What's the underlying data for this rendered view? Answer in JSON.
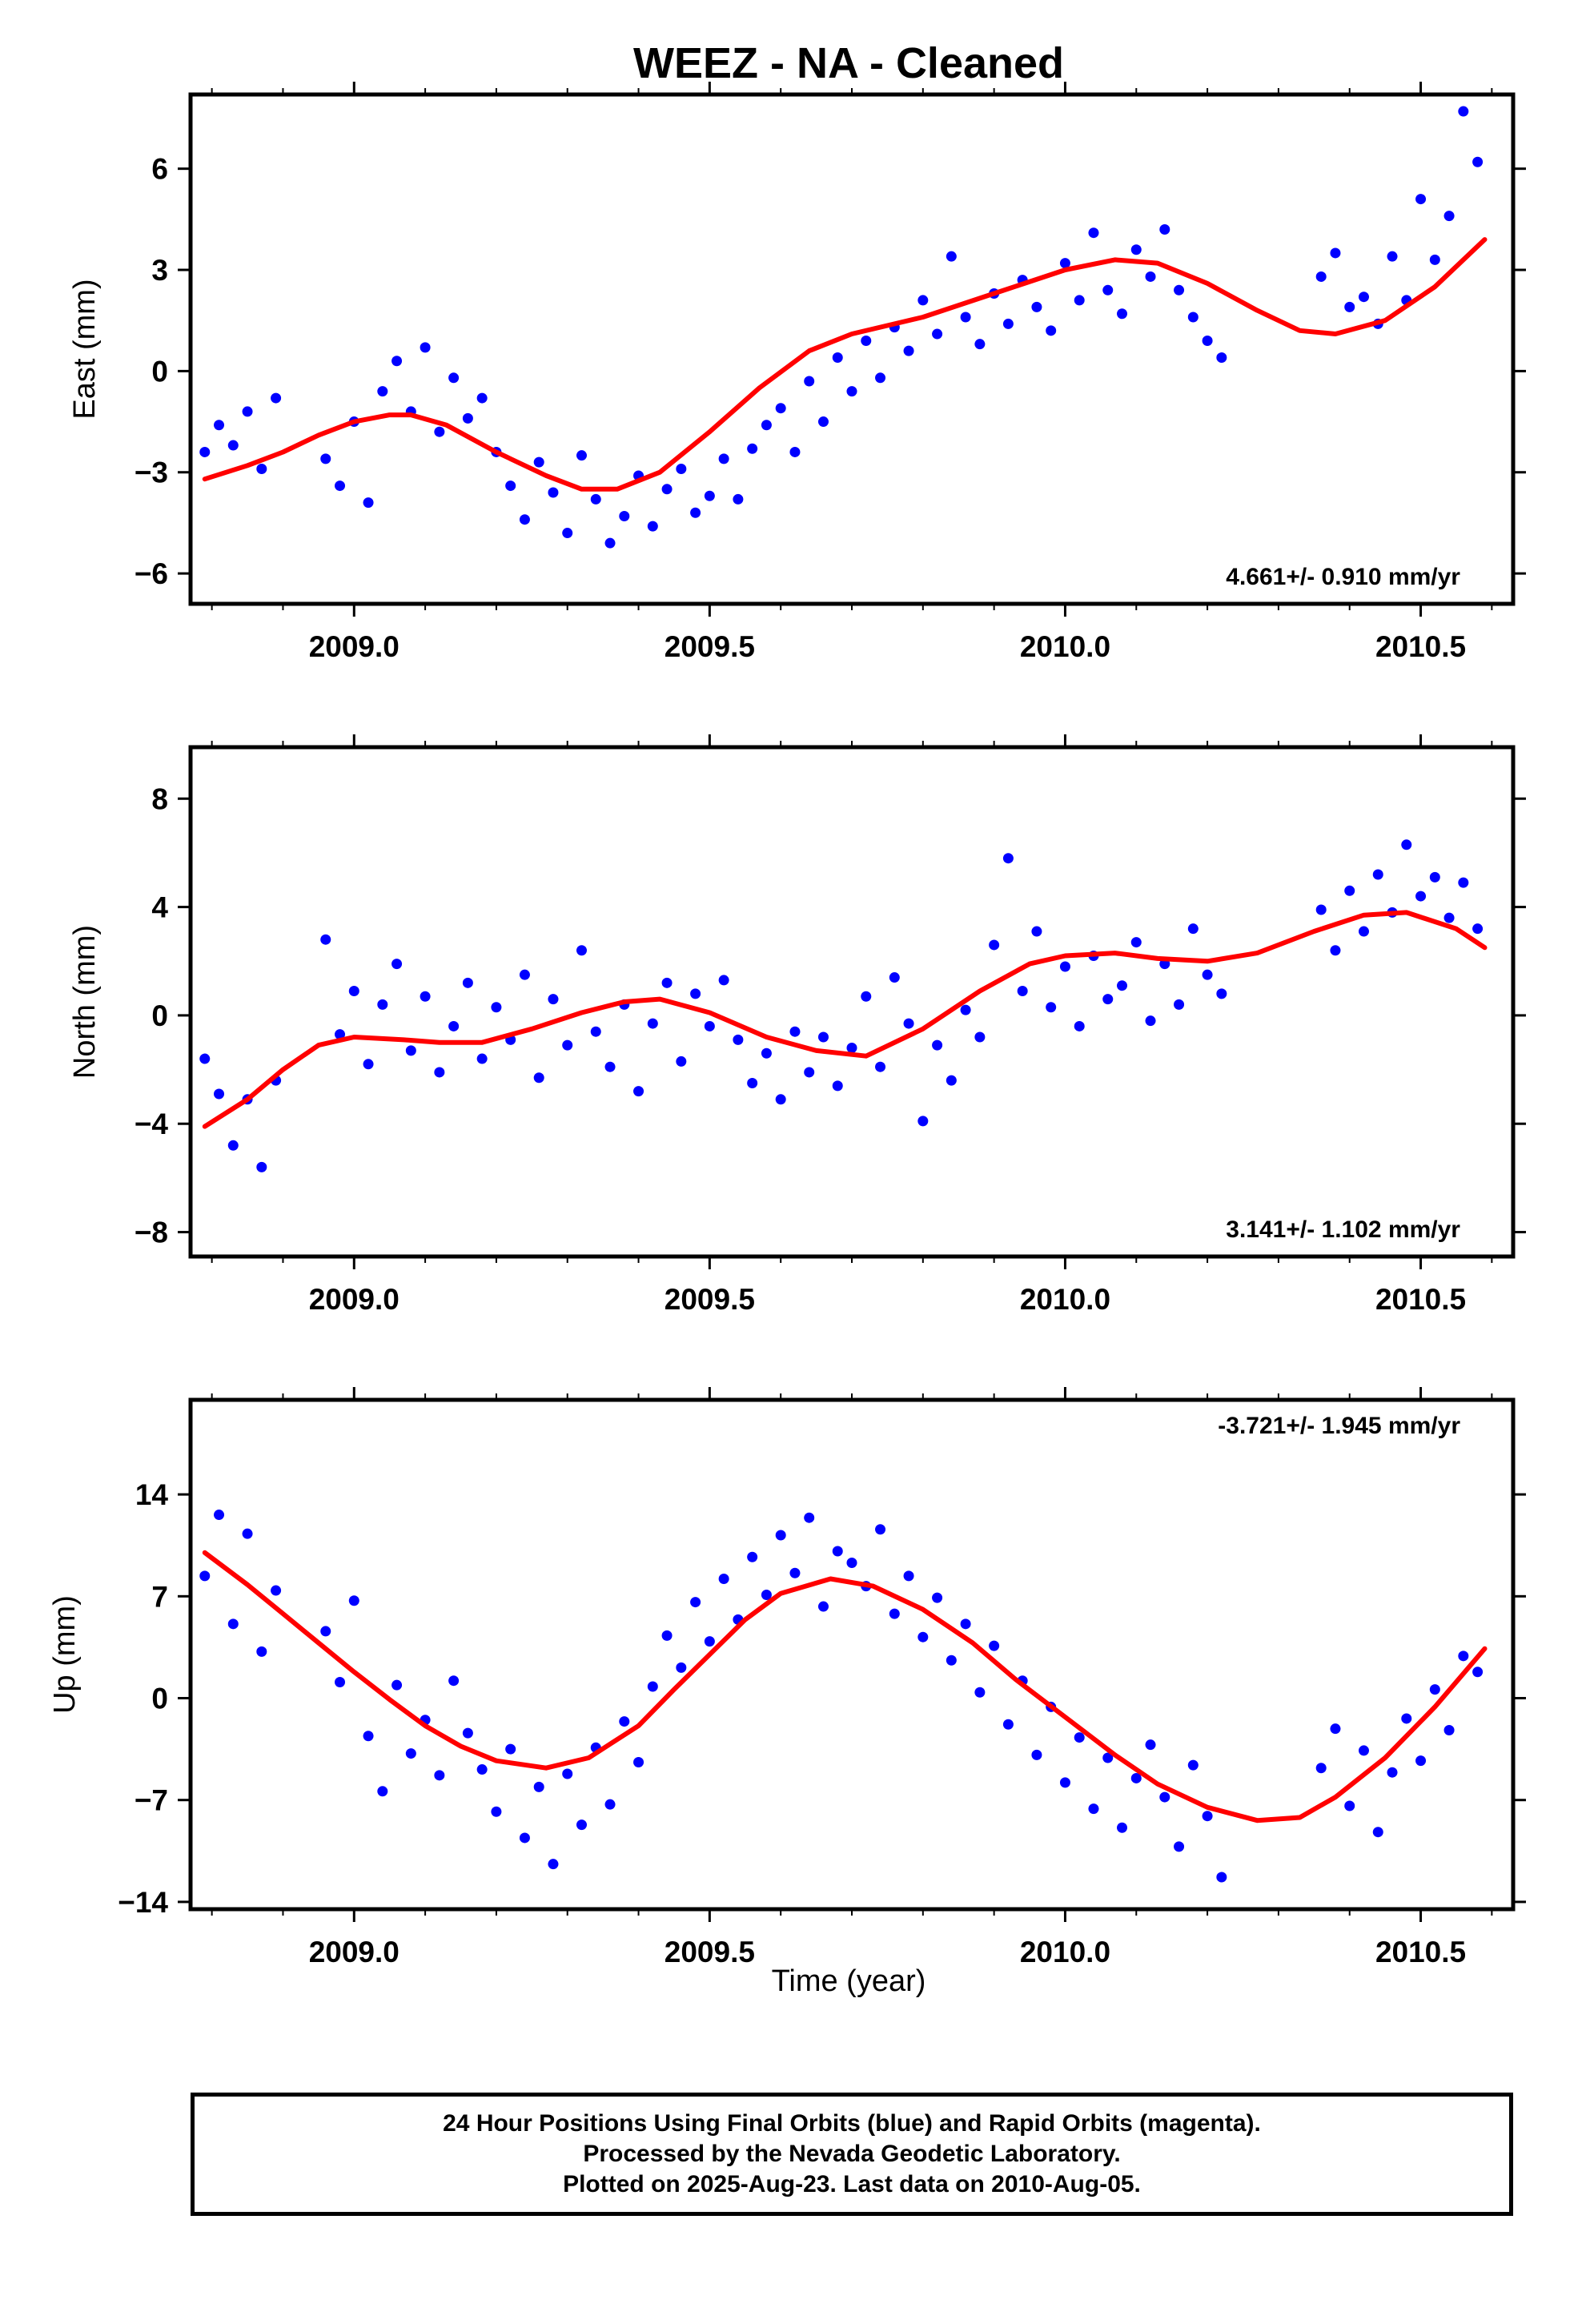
{
  "title": "WEEZ  - NA - Cleaned",
  "xlabel": "Time (year)",
  "footer": {
    "line1": "24 Hour Positions Using Final Orbits (blue) and Rapid Orbits (magenta).",
    "line2": "Processed by the Nevada Geodetic Laboratory.",
    "line3": "Plotted on 2025-Aug-23. Last data on 2010-Aug-05."
  },
  "colors": {
    "points": "#0000ff",
    "fit": "#ff0000",
    "frame": "#000000"
  },
  "chart_data": [
    {
      "type": "scatter",
      "ylabel": "East (mm)",
      "rate": "4.661+/- 0.910 mm/yr",
      "rate_position": "bottom-right",
      "xlim": [
        2008.77,
        2010.63
      ],
      "ylim": [
        -6.9,
        8.2
      ],
      "xticks": [
        2009.0,
        2009.5,
        2010.0,
        2010.5
      ],
      "xtick_labels": [
        "2009.0",
        "2009.5",
        "2010.0",
        "2010.5"
      ],
      "yticks": [
        -6,
        -3,
        0,
        3,
        6
      ],
      "ytick_labels": [
        "−6",
        "−3",
        "0",
        "3",
        "6"
      ],
      "grid": false,
      "series": [
        {
          "kind": "points",
          "x": [
            2008.79,
            2008.81,
            2008.83,
            2008.85,
            2008.87,
            2008.89,
            2008.96,
            2008.98,
            2009.0,
            2009.02,
            2009.04,
            2009.06,
            2009.08,
            2009.1,
            2009.12,
            2009.14,
            2009.16,
            2009.18,
            2009.2,
            2009.22,
            2009.24,
            2009.26,
            2009.28,
            2009.3,
            2009.32,
            2009.34,
            2009.36,
            2009.38,
            2009.4,
            2009.42,
            2009.44,
            2009.46,
            2009.48,
            2009.5,
            2009.52,
            2009.54,
            2009.56,
            2009.58,
            2009.6,
            2009.62,
            2009.64,
            2009.66,
            2009.68,
            2009.7,
            2009.72,
            2009.74,
            2009.76,
            2009.78,
            2009.8,
            2009.82,
            2009.84,
            2009.86,
            2009.88,
            2009.9,
            2009.92,
            2009.94,
            2009.96,
            2009.98,
            2010.0,
            2010.02,
            2010.04,
            2010.06,
            2010.08,
            2010.1,
            2010.12,
            2010.14,
            2010.16,
            2010.18,
            2010.2,
            2010.22,
            2010.36,
            2010.38,
            2010.4,
            2010.42,
            2010.44,
            2010.46,
            2010.48,
            2010.5,
            2010.52,
            2010.54,
            2010.56,
            2010.58
          ],
          "y": [
            -2.4,
            -1.6,
            -2.2,
            -1.2,
            -2.9,
            -0.8,
            -2.6,
            -3.4,
            -1.5,
            -3.9,
            -0.6,
            0.3,
            -1.2,
            0.7,
            -1.8,
            -0.2,
            -1.4,
            -0.8,
            -2.4,
            -3.4,
            -4.4,
            -2.7,
            -3.6,
            -4.8,
            -2.5,
            -3.8,
            -5.1,
            -4.3,
            -3.1,
            -4.6,
            -3.5,
            -2.9,
            -4.2,
            -3.7,
            -2.6,
            -3.8,
            -2.3,
            -1.6,
            -1.1,
            -2.4,
            -0.3,
            -1.5,
            0.4,
            -0.6,
            0.9,
            -0.2,
            1.3,
            0.6,
            2.1,
            1.1,
            3.4,
            1.6,
            0.8,
            2.3,
            1.4,
            2.7,
            1.9,
            1.2,
            3.2,
            2.1,
            4.1,
            2.4,
            1.7,
            3.6,
            2.8,
            4.2,
            2.4,
            1.6,
            0.9,
            0.4,
            2.8,
            3.5,
            1.9,
            2.2,
            1.4,
            3.4,
            2.1,
            5.1,
            3.3,
            4.6,
            7.7,
            6.2
          ]
        },
        {
          "kind": "fit",
          "x": [
            2008.79,
            2008.85,
            2008.9,
            2008.95,
            2009.0,
            2009.05,
            2009.08,
            2009.13,
            2009.2,
            2009.27,
            2009.32,
            2009.37,
            2009.43,
            2009.5,
            2009.57,
            2009.64,
            2009.7,
            2009.8,
            2009.9,
            2010.0,
            2010.07,
            2010.13,
            2010.2,
            2010.27,
            2010.33,
            2010.38,
            2010.45,
            2010.52,
            2010.59
          ],
          "y": [
            -3.2,
            -2.8,
            -2.4,
            -1.9,
            -1.5,
            -1.3,
            -1.3,
            -1.6,
            -2.4,
            -3.1,
            -3.5,
            -3.5,
            -3.0,
            -1.8,
            -0.5,
            0.6,
            1.1,
            1.6,
            2.3,
            3.0,
            3.3,
            3.2,
            2.6,
            1.8,
            1.2,
            1.1,
            1.5,
            2.5,
            3.9
          ]
        }
      ]
    },
    {
      "type": "scatter",
      "ylabel": "North (mm)",
      "rate": "3.141+/- 1.102 mm/yr",
      "rate_position": "bottom-right",
      "xlim": [
        2008.77,
        2010.63
      ],
      "ylim": [
        -8.9,
        9.9
      ],
      "xticks": [
        2009.0,
        2009.5,
        2010.0,
        2010.5
      ],
      "xtick_labels": [
        "2009.0",
        "2009.5",
        "2010.0",
        "2010.5"
      ],
      "yticks": [
        -8,
        -4,
        0,
        4,
        8
      ],
      "ytick_labels": [
        "−8",
        "−4",
        "0",
        "4",
        "8"
      ],
      "grid": false,
      "series": [
        {
          "kind": "points",
          "x": [
            2008.79,
            2008.81,
            2008.83,
            2008.85,
            2008.87,
            2008.89,
            2008.96,
            2008.98,
            2009.0,
            2009.02,
            2009.04,
            2009.06,
            2009.08,
            2009.1,
            2009.12,
            2009.14,
            2009.16,
            2009.18,
            2009.2,
            2009.22,
            2009.24,
            2009.26,
            2009.28,
            2009.3,
            2009.32,
            2009.34,
            2009.36,
            2009.38,
            2009.4,
            2009.42,
            2009.44,
            2009.46,
            2009.48,
            2009.5,
            2009.52,
            2009.54,
            2009.56,
            2009.58,
            2009.6,
            2009.62,
            2009.64,
            2009.66,
            2009.68,
            2009.7,
            2009.72,
            2009.74,
            2009.76,
            2009.78,
            2009.8,
            2009.82,
            2009.84,
            2009.86,
            2009.88,
            2009.9,
            2009.92,
            2009.94,
            2009.96,
            2009.98,
            2010.0,
            2010.02,
            2010.04,
            2010.06,
            2010.08,
            2010.1,
            2010.12,
            2010.14,
            2010.16,
            2010.18,
            2010.2,
            2010.22,
            2010.36,
            2010.38,
            2010.4,
            2010.42,
            2010.44,
            2010.46,
            2010.48,
            2010.5,
            2010.52,
            2010.54,
            2010.56,
            2010.58
          ],
          "y": [
            -1.6,
            -2.9,
            -4.8,
            -3.1,
            -5.6,
            -2.4,
            2.8,
            -0.7,
            0.9,
            -1.8,
            0.4,
            1.9,
            -1.3,
            0.7,
            -2.1,
            -0.4,
            1.2,
            -1.6,
            0.3,
            -0.9,
            1.5,
            -2.3,
            0.6,
            -1.1,
            2.4,
            -0.6,
            -1.9,
            0.4,
            -2.8,
            -0.3,
            1.2,
            -1.7,
            0.8,
            -0.4,
            1.3,
            -0.9,
            -2.5,
            -1.4,
            -3.1,
            -0.6,
            -2.1,
            -0.8,
            -2.6,
            -1.2,
            0.7,
            -1.9,
            1.4,
            -0.3,
            -3.9,
            -1.1,
            -2.4,
            0.2,
            -0.8,
            2.6,
            5.8,
            0.9,
            3.1,
            0.3,
            1.8,
            -0.4,
            2.2,
            0.6,
            1.1,
            2.7,
            -0.2,
            1.9,
            0.4,
            3.2,
            1.5,
            0.8,
            3.9,
            2.4,
            4.6,
            3.1,
            5.2,
            3.8,
            6.3,
            4.4,
            5.1,
            3.6,
            4.9,
            3.2
          ]
        },
        {
          "kind": "fit",
          "x": [
            2008.79,
            2008.85,
            2008.9,
            2008.95,
            2009.0,
            2009.07,
            2009.12,
            2009.18,
            2009.25,
            2009.32,
            2009.38,
            2009.43,
            2009.5,
            2009.58,
            2009.65,
            2009.72,
            2009.8,
            2009.88,
            2009.95,
            2010.0,
            2010.07,
            2010.13,
            2010.2,
            2010.27,
            2010.35,
            2010.42,
            2010.48,
            2010.55,
            2010.59
          ],
          "y": [
            -4.1,
            -3.1,
            -2.0,
            -1.1,
            -0.8,
            -0.9,
            -1.0,
            -1.0,
            -0.5,
            0.1,
            0.5,
            0.6,
            0.1,
            -0.8,
            -1.3,
            -1.5,
            -0.5,
            0.9,
            1.9,
            2.2,
            2.3,
            2.1,
            2.0,
            2.3,
            3.1,
            3.7,
            3.8,
            3.2,
            2.5
          ]
        }
      ]
    },
    {
      "type": "scatter",
      "ylabel": "Up (mm)",
      "rate": "-3.721+/- 1.945 mm/yr",
      "rate_position": "top-right",
      "xlim": [
        2008.77,
        2010.63
      ],
      "ylim": [
        -14.5,
        20.5
      ],
      "xticks": [
        2009.0,
        2009.5,
        2010.0,
        2010.5
      ],
      "xtick_labels": [
        "2009.0",
        "2009.5",
        "2010.0",
        "2010.5"
      ],
      "yticks": [
        -14,
        -7,
        0,
        7,
        14
      ],
      "ytick_labels": [
        "−14",
        "−7",
        "0",
        "7",
        "14"
      ],
      "grid": false,
      "series": [
        {
          "kind": "points",
          "x": [
            2008.79,
            2008.81,
            2008.83,
            2008.85,
            2008.87,
            2008.89,
            2008.96,
            2008.98,
            2009.0,
            2009.02,
            2009.04,
            2009.06,
            2009.08,
            2009.1,
            2009.12,
            2009.14,
            2009.16,
            2009.18,
            2009.2,
            2009.22,
            2009.24,
            2009.26,
            2009.28,
            2009.3,
            2009.32,
            2009.34,
            2009.36,
            2009.38,
            2009.4,
            2009.42,
            2009.44,
            2009.46,
            2009.48,
            2009.5,
            2009.52,
            2009.54,
            2009.56,
            2009.58,
            2009.6,
            2009.62,
            2009.64,
            2009.66,
            2009.68,
            2009.7,
            2009.72,
            2009.74,
            2009.76,
            2009.78,
            2009.8,
            2009.82,
            2009.84,
            2009.86,
            2009.88,
            2009.9,
            2009.92,
            2009.94,
            2009.96,
            2009.98,
            2010.0,
            2010.02,
            2010.04,
            2010.06,
            2010.08,
            2010.1,
            2010.12,
            2010.14,
            2010.16,
            2010.18,
            2010.2,
            2010.22,
            2010.36,
            2010.38,
            2010.4,
            2010.42,
            2010.44,
            2010.46,
            2010.48,
            2010.5,
            2010.52,
            2010.54,
            2010.56,
            2010.58
          ],
          "y": [
            8.4,
            12.6,
            5.1,
            11.3,
            3.2,
            7.4,
            4.6,
            1.1,
            6.7,
            -2.6,
            -6.4,
            0.9,
            -3.8,
            -1.5,
            -5.3,
            1.2,
            -2.4,
            -4.9,
            -7.8,
            -3.5,
            -9.6,
            -6.1,
            -11.4,
            -5.2,
            -8.7,
            -3.4,
            -7.3,
            -1.6,
            -4.4,
            0.8,
            4.3,
            2.1,
            6.6,
            3.9,
            8.2,
            5.4,
            9.7,
            7.1,
            11.2,
            8.6,
            12.4,
            6.3,
            10.1,
            9.3,
            7.7,
            11.6,
            5.8,
            8.4,
            4.2,
            6.9,
            2.6,
            5.1,
            0.4,
            3.6,
            -1.8,
            1.2,
            -3.9,
            -0.6,
            -5.8,
            -2.7,
            -7.6,
            -4.1,
            -8.9,
            -5.5,
            -3.2,
            -6.8,
            -10.2,
            -4.6,
            -8.1,
            -12.3,
            -4.8,
            -2.1,
            -7.4,
            -3.6,
            -9.2,
            -5.1,
            -1.4,
            -4.3,
            0.6,
            -2.2,
            2.9,
            1.8
          ]
        },
        {
          "kind": "fit",
          "x": [
            2008.79,
            2008.85,
            2008.9,
            2008.95,
            2009.0,
            2009.05,
            2009.1,
            2009.15,
            2009.2,
            2009.27,
            2009.33,
            2009.4,
            2009.45,
            2009.5,
            2009.55,
            2009.6,
            2009.67,
            2009.73,
            2009.8,
            2009.87,
            2009.93,
            2010.0,
            2010.07,
            2010.13,
            2010.2,
            2010.27,
            2010.33,
            2010.38,
            2010.45,
            2010.52,
            2010.59
          ],
          "y": [
            10.0,
            7.8,
            5.8,
            3.8,
            1.8,
            -0.1,
            -1.9,
            -3.3,
            -4.3,
            -4.8,
            -4.1,
            -1.9,
            0.6,
            3.0,
            5.4,
            7.2,
            8.2,
            7.7,
            6.1,
            3.8,
            1.3,
            -1.3,
            -3.9,
            -5.9,
            -7.5,
            -8.4,
            -8.2,
            -6.8,
            -4.1,
            -0.6,
            3.4
          ]
        }
      ]
    }
  ]
}
